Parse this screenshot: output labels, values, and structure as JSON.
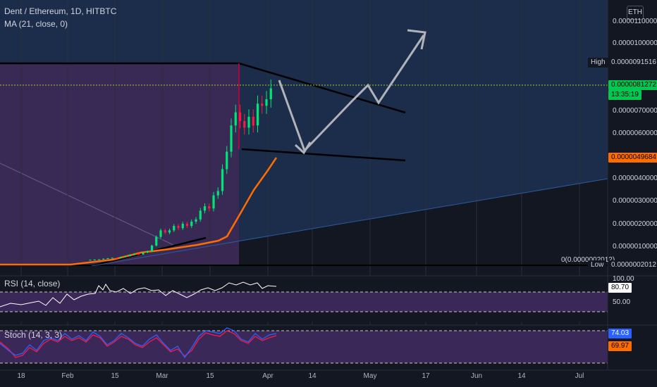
{
  "header": {
    "title": "Dent / Ethereum, 1D, HITBTC",
    "indicator": "MA (21, close, 0)",
    "currency": "ETH"
  },
  "price_axis": {
    "ticks": [
      "0.0000110000",
      "0.0000100000",
      "0.0000070000",
      "0.0000060000",
      "0.0000040000",
      "0.0000030000",
      "0.0000020000",
      "0.0000010000"
    ],
    "high_label": "High",
    "high_value": "0.0000091516",
    "last_price": "0.0000081272",
    "countdown": "13:35:19",
    "ma_value": "0.0000049684",
    "low_label": "Low",
    "low_value": "0.0000002012",
    "low_line_label": "0(0.0000002012)"
  },
  "rsi": {
    "title": "RSI (14, close)",
    "ticks": [
      "100.00",
      "50.00"
    ],
    "value": "80.70",
    "upper": 70,
    "lower": 30
  },
  "stoch": {
    "title": "Stoch (14, 3, 3)",
    "k_value": "74.03",
    "d_value": "69.97"
  },
  "time_axis": [
    "18",
    "Feb",
    "15",
    "Mar",
    "15",
    "Apr",
    "14",
    "May",
    "17",
    "Jun",
    "14",
    "Jul"
  ],
  "colors": {
    "background": "#131722",
    "panel_blue": "#1b2d4a",
    "purple_zone": "#3b2a55",
    "up": "#00e676",
    "down": "#ff1744",
    "ma": "#ff6d00",
    "rsi_line": "#ffffff",
    "stoch_k": "#2962ff",
    "stoch_d": "#ff1744",
    "last_price_tag": "#00c853",
    "ma_tag": "#ff6d00"
  },
  "chart_data": {
    "type": "candlestick",
    "title": "Dent / Ethereum, 1D, HITBTC",
    "ylim": [
      0,
      1.15e-05
    ],
    "close": [
      2.5e-07,
      2.6e-07,
      2.7e-07,
      3e-07,
      3.2e-07,
      3.4e-07,
      3.3e-07,
      3.8e-07,
      4.2e-07,
      4.8e-07,
      5.2e-07,
      5e-07,
      5.8e-07,
      6.4e-07,
      9e-07,
      1.3e-06,
      1.6e-06,
      1.5e-06,
      1.6e-06,
      1.8e-06,
      1.7e-06,
      1.9e-06,
      1.8e-06,
      2e-06,
      2.1e-06,
      2.5e-06,
      2.7e-06,
      2.6e-06,
      3.2e-06,
      3.4e-06,
      4.4e-06,
      5.2e-06,
      6.4e-06,
      7e-06,
      6.6e-06,
      6.3e-06,
      6.8e-06,
      6.4e-06,
      7.4e-06,
      7.3e-06,
      7.6e-06,
      8.1e-06
    ],
    "ma_label": "MA (21, close, 0)"
  }
}
